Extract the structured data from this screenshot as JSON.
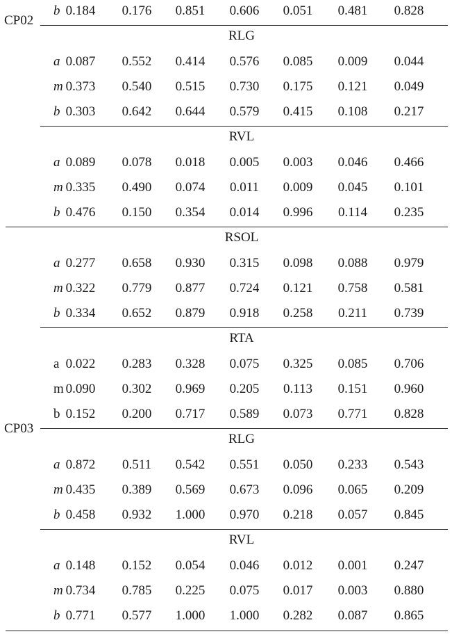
{
  "table": {
    "groups": [
      {
        "label": "CP02",
        "sections": [
          {
            "name": "",
            "rows": [
              {
                "var": "b",
                "italic": true,
                "values": [
                  "0.184",
                  "0.176",
                  "0.851",
                  "0.606",
                  "0.051",
                  "0.481",
                  "0.828"
                ]
              }
            ]
          },
          {
            "name": "RLG",
            "rows": [
              {
                "var": "a",
                "italic": true,
                "values": [
                  "0.087",
                  "0.552",
                  "0.414",
                  "0.576",
                  "0.085",
                  "0.009",
                  "0.044"
                ]
              },
              {
                "var": "m",
                "italic": true,
                "values": [
                  "0.373",
                  "0.540",
                  "0.515",
                  "0.730",
                  "0.175",
                  "0.121",
                  "0.049"
                ]
              },
              {
                "var": "b",
                "italic": true,
                "values": [
                  "0.303",
                  "0.642",
                  "0.644",
                  "0.579",
                  "0.415",
                  "0.108",
                  "0.217"
                ]
              }
            ]
          },
          {
            "name": "RVL",
            "rows": [
              {
                "var": "a",
                "italic": true,
                "values": [
                  "0.089",
                  "0.078",
                  "0.018",
                  "0.005",
                  "0.003",
                  "0.046",
                  "0.466"
                ]
              },
              {
                "var": "m",
                "italic": true,
                "values": [
                  "0.335",
                  "0.490",
                  "0.074",
                  "0.011",
                  "0.009",
                  "0.045",
                  "0.101"
                ]
              },
              {
                "var": "b",
                "italic": true,
                "values": [
                  "0.476",
                  "0.150",
                  "0.354",
                  "0.014",
                  "0.996",
                  "0.114",
                  "0.235"
                ]
              }
            ]
          }
        ]
      },
      {
        "label": "CP03",
        "sections": [
          {
            "name": "RSOL",
            "rows": [
              {
                "var": "a",
                "italic": true,
                "values": [
                  "0.277",
                  "0.658",
                  "0.930",
                  "0.315",
                  "0.098",
                  "0.088",
                  "0.979"
                ]
              },
              {
                "var": "m",
                "italic": true,
                "values": [
                  "0.322",
                  "0.779",
                  "0.877",
                  "0.724",
                  "0.121",
                  "0.758",
                  "0.581"
                ]
              },
              {
                "var": "b",
                "italic": true,
                "values": [
                  "0.334",
                  "0.652",
                  "0.879",
                  "0.918",
                  "0.258",
                  "0.211",
                  "0.739"
                ]
              }
            ]
          },
          {
            "name": "RTA",
            "rows": [
              {
                "var": "a",
                "italic": false,
                "values": [
                  "0.022",
                  "0.283",
                  "0.328",
                  "0.075",
                  "0.325",
                  "0.085",
                  "0.706"
                ]
              },
              {
                "var": "m",
                "italic": false,
                "values": [
                  "0.090",
                  "0.302",
                  "0.969",
                  "0.205",
                  "0.113",
                  "0.151",
                  "0.960"
                ]
              },
              {
                "var": "b",
                "italic": false,
                "values": [
                  "0.152",
                  "0.200",
                  "0.717",
                  "0.589",
                  "0.073",
                  "0.771",
                  "0.828"
                ]
              }
            ]
          },
          {
            "name": "RLG",
            "rows": [
              {
                "var": "a",
                "italic": true,
                "values": [
                  "0.872",
                  "0.511",
                  "0.542",
                  "0.551",
                  "0.050",
                  "0.233",
                  "0.543"
                ]
              },
              {
                "var": "m",
                "italic": true,
                "values": [
                  "0.435",
                  "0.389",
                  "0.569",
                  "0.673",
                  "0.096",
                  "0.065",
                  "0.209"
                ]
              },
              {
                "var": "b",
                "italic": true,
                "values": [
                  "0.458",
                  "0.932",
                  "1.000",
                  "0.970",
                  "0.218",
                  "0.057",
                  "0.845"
                ]
              }
            ]
          },
          {
            "name": "RVL",
            "rows": [
              {
                "var": "a",
                "italic": true,
                "values": [
                  "0.148",
                  "0.152",
                  "0.054",
                  "0.046",
                  "0.012",
                  "0.001",
                  "0.247"
                ]
              },
              {
                "var": "m",
                "italic": true,
                "values": [
                  "0.734",
                  "0.785",
                  "0.225",
                  "0.075",
                  "0.017",
                  "0.003",
                  "0.880"
                ]
              },
              {
                "var": "b",
                "italic": true,
                "values": [
                  "0.771",
                  "0.577",
                  "1.000",
                  "1.000",
                  "0.282",
                  "0.087",
                  "0.865"
                ]
              }
            ]
          }
        ]
      }
    ]
  }
}
